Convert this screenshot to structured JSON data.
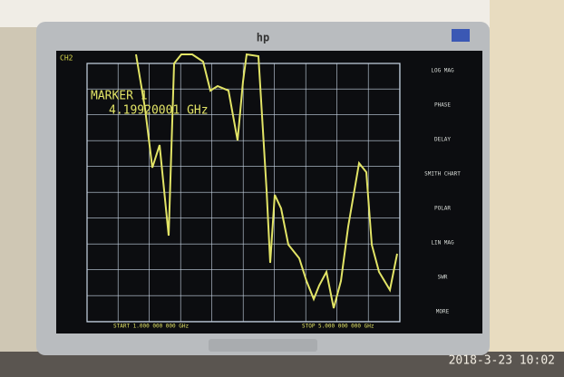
{
  "screen": {
    "channel": "CH2",
    "marker_title": "MARKER 1",
    "marker_value": "4.19920001 GHz",
    "start": "START 1.000 000 000 GHz",
    "stop": "STOP 5.000 000 000 GHz"
  },
  "menu": [
    "LOG MAG",
    "PHASE",
    "DELAY",
    "SMITH CHART",
    "POLAR",
    "LIN MAG",
    "SWR",
    "MORE"
  ],
  "brand": "hp",
  "timestamp": "2018-3-23 10:02"
}
